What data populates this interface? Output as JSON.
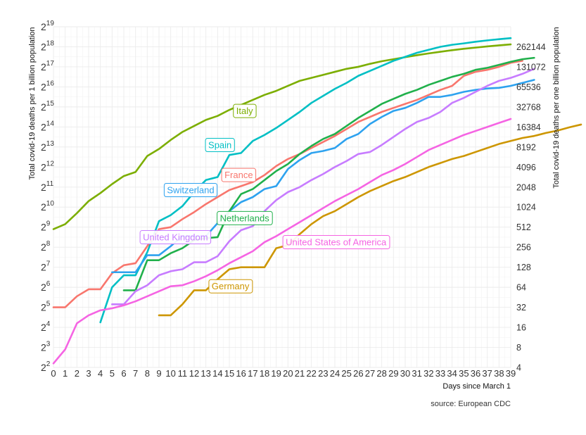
{
  "chart_data": {
    "type": "line",
    "xlabel": "Days since March 1",
    "ylabel_left": "Total covid-19 deaths per 1 billion population",
    "ylabel_right": "Total covid-19 deaths per one billion population",
    "caption": "source: European CDC",
    "xlim": [
      0,
      39
    ],
    "ylim_log2": [
      2,
      19
    ],
    "y_scale": "log2",
    "grid": true,
    "x_ticks": [
      0,
      1,
      2,
      3,
      4,
      5,
      6,
      7,
      8,
      9,
      10,
      11,
      12,
      13,
      14,
      15,
      16,
      17,
      18,
      19,
      20,
      21,
      22,
      23,
      24,
      25,
      26,
      27,
      28,
      29,
      30,
      31,
      32,
      33,
      34,
      35,
      36,
      37,
      38,
      39
    ],
    "y_ticks_left": [
      {
        "base": "2",
        "exp": "2"
      },
      {
        "base": "2",
        "exp": "3"
      },
      {
        "base": "2",
        "exp": "4"
      },
      {
        "base": "2",
        "exp": "5"
      },
      {
        "base": "2",
        "exp": "6"
      },
      {
        "base": "2",
        "exp": "7"
      },
      {
        "base": "2",
        "exp": "8"
      },
      {
        "base": "2",
        "exp": "9"
      },
      {
        "base": "2",
        "exp": "10"
      },
      {
        "base": "2",
        "exp": "11"
      },
      {
        "base": "2",
        "exp": "12"
      },
      {
        "base": "2",
        "exp": "13"
      },
      {
        "base": "2",
        "exp": "14"
      },
      {
        "base": "2",
        "exp": "15"
      },
      {
        "base": "2",
        "exp": "16"
      },
      {
        "base": "2",
        "exp": "17"
      },
      {
        "base": "2",
        "exp": "18"
      },
      {
        "base": "2",
        "exp": "19"
      }
    ],
    "y_ticks_right": [
      "4",
      "8",
      "16",
      "32",
      "64",
      "128",
      "256",
      "512",
      "1024",
      "2048",
      "4096",
      "8192",
      "16384",
      "32768",
      "65536",
      "131072",
      "262144"
    ],
    "series": [
      {
        "name": "Italy",
        "color": "#7cae00",
        "x_start": 0,
        "values": [
          8.9,
          9.15,
          9.7,
          10.3,
          10.7,
          11.15,
          11.55,
          11.75,
          12.55,
          12.9,
          13.35,
          13.75,
          14.05,
          14.35,
          14.55,
          14.85,
          15.1,
          15.35,
          15.6,
          15.8,
          16.05,
          16.3,
          16.45,
          16.6,
          16.75,
          16.9,
          17.0,
          17.15,
          17.28,
          17.38,
          17.48,
          17.58,
          17.67,
          17.75,
          17.83,
          17.9,
          17.96,
          18.02,
          18.07,
          18.12
        ],
        "label_pos": {
          "x": 16.3,
          "y": 14.8
        }
      },
      {
        "name": "Spain",
        "color": "#00bfc4",
        "x_start": 4,
        "values": [
          4.25,
          6.0,
          6.6,
          6.6,
          7.75,
          9.3,
          9.6,
          10.05,
          10.75,
          11.35,
          11.5,
          12.6,
          12.7,
          13.3,
          13.6,
          13.95,
          14.35,
          14.75,
          15.2,
          15.55,
          15.9,
          16.2,
          16.55,
          16.8,
          17.05,
          17.3,
          17.5,
          17.7,
          17.85,
          18.0,
          18.1,
          18.17,
          18.25,
          18.32,
          18.38,
          18.43
        ],
        "label_pos": {
          "x": 14.2,
          "y": 13.1
        }
      },
      {
        "name": "France",
        "color": "#f8766d",
        "x_start": 0,
        "values": [
          5.0,
          5.0,
          5.55,
          5.9,
          5.9,
          6.7,
          7.1,
          7.2,
          8.05,
          8.9,
          9.0,
          9.4,
          9.75,
          10.15,
          10.5,
          10.85,
          11.05,
          11.25,
          11.6,
          12.05,
          12.4,
          12.65,
          12.95,
          13.25,
          13.55,
          13.9,
          14.25,
          14.5,
          14.75,
          14.95,
          15.15,
          15.35,
          15.6,
          15.85,
          16.05,
          16.55,
          16.75,
          16.85,
          17.0,
          17.2,
          17.3
        ],
        "label_pos": {
          "x": 15.8,
          "y": 11.6
        }
      },
      {
        "name": "Switzerland",
        "color": "#2da2ef",
        "x_start": 5,
        "values": [
          6.75,
          6.75,
          6.75,
          7.6,
          7.6,
          8.05,
          8.55,
          8.55,
          8.55,
          9.2,
          9.8,
          10.25,
          10.5,
          10.9,
          11.05,
          11.9,
          12.35,
          12.7,
          12.8,
          12.95,
          13.4,
          13.65,
          14.15,
          14.5,
          14.8,
          14.95,
          15.2,
          15.5,
          15.5,
          15.6,
          15.75,
          15.85,
          15.92,
          15.95,
          16.05,
          16.2,
          16.35
        ],
        "label_pos": {
          "x": 11.7,
          "y": 10.85
        }
      },
      {
        "name": "Netherlands",
        "color": "#20b04b",
        "x_start": 6,
        "values": [
          5.85,
          5.85,
          7.35,
          7.35,
          7.7,
          7.95,
          8.35,
          8.45,
          8.5,
          9.8,
          10.65,
          10.9,
          11.35,
          11.8,
          12.15,
          12.65,
          13.05,
          13.4,
          13.65,
          14.05,
          14.45,
          14.8,
          15.15,
          15.4,
          15.65,
          15.85,
          16.1,
          16.3,
          16.5,
          16.65,
          16.85,
          16.95,
          17.1,
          17.25,
          17.38,
          17.45
        ],
        "label_pos": {
          "x": 16.3,
          "y": 9.45
        }
      },
      {
        "name": "United Kingdom",
        "color": "#c77cff",
        "x_start": 5,
        "values": [
          5.15,
          5.15,
          5.8,
          6.1,
          6.6,
          6.8,
          6.9,
          7.25,
          7.25,
          7.55,
          8.3,
          8.85,
          9.05,
          9.8,
          10.35,
          10.75,
          11.0,
          11.35,
          11.65,
          12.0,
          12.3,
          12.65,
          12.75,
          13.1,
          13.5,
          13.9,
          14.25,
          14.45,
          14.75,
          15.2,
          15.45,
          15.75,
          16.05,
          16.3,
          16.45,
          16.65,
          16.9
        ],
        "label_pos": {
          "x": 10.4,
          "y": 8.5
        }
      },
      {
        "name": "United States of America",
        "color": "#f564e3",
        "x_start": 0,
        "values": [
          2.2,
          2.9,
          4.2,
          4.6,
          4.85,
          4.95,
          5.1,
          5.3,
          5.55,
          5.8,
          6.05,
          6.1,
          6.3,
          6.55,
          6.85,
          7.2,
          7.5,
          7.8,
          8.25,
          8.55,
          8.9,
          9.25,
          9.6,
          9.95,
          10.3,
          10.6,
          10.9,
          11.25,
          11.6,
          11.85,
          12.15,
          12.5,
          12.85,
          13.1,
          13.35,
          13.6,
          13.8,
          14.0,
          14.2,
          14.4
        ],
        "label_pos": {
          "x": 24.1,
          "y": 8.25
        }
      },
      {
        "name": "Germany",
        "color": "#cd9600",
        "x_start": 9,
        "values": [
          4.6,
          4.6,
          5.15,
          5.85,
          5.85,
          6.4,
          6.9,
          7.0,
          7.0,
          7.0,
          7.95,
          8.1,
          8.65,
          9.15,
          9.55,
          9.8,
          10.15,
          10.5,
          10.8,
          11.05,
          11.3,
          11.5,
          11.75,
          12.0,
          12.2,
          12.4,
          12.55,
          12.75,
          12.95,
          13.15,
          13.3,
          13.45,
          13.55,
          13.7,
          13.82,
          13.98,
          14.12
        ],
        "label_pos": {
          "x": 15.1,
          "y": 6.05
        }
      }
    ]
  }
}
